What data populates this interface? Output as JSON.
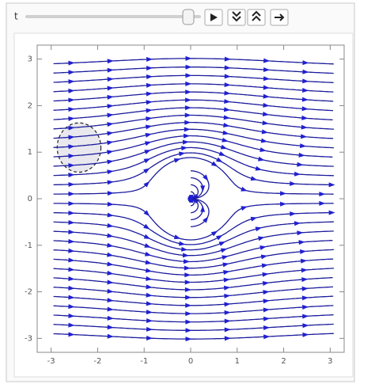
{
  "controls": {
    "slider_label": "t"
  },
  "chart_data": {
    "type": "stream",
    "xlim": [
      -3.3,
      3.3
    ],
    "ylim": [
      -3.3,
      3.3
    ],
    "xticks": [
      -3,
      -2,
      -1,
      0,
      1,
      2,
      3
    ],
    "yticks": [
      -3,
      -2,
      -1,
      0,
      1,
      2,
      3
    ],
    "color": "#1c1c9c",
    "region": {
      "center": [
        -2.4,
        1.1
      ],
      "radii": [
        0.47,
        0.53
      ],
      "color": "#e8e8ee"
    }
  }
}
